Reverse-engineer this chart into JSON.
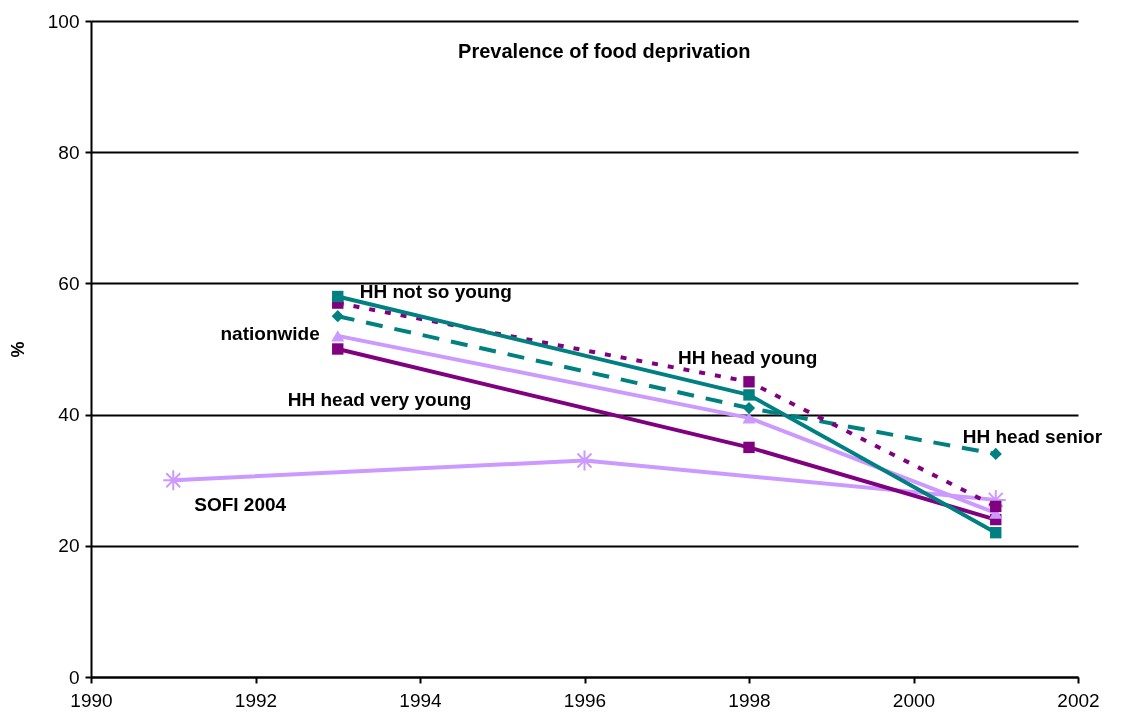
{
  "chart_data": {
    "type": "line",
    "title": "Prevalence of food deprivation",
    "ylabel": "%",
    "xlim": [
      1990,
      2002
    ],
    "xticks": [
      1990,
      1992,
      1994,
      1996,
      1998,
      2000,
      2002
    ],
    "ylim": [
      0,
      100
    ],
    "yticks": [
      0,
      20,
      40,
      60,
      80,
      100
    ],
    "grid": "y",
    "series": [
      {
        "name": "HH not so young",
        "color": "#008080",
        "x": [
          1993,
          1998,
          2001
        ],
        "values": [
          58,
          43,
          22
        ],
        "marker": "square",
        "line_style": "solid"
      },
      {
        "name": "HH head young",
        "color": "#800080",
        "x": [
          1993,
          1998,
          2001
        ],
        "values": [
          57,
          45,
          26
        ],
        "marker": "square",
        "line_style": "dotted"
      },
      {
        "name": "HH head senior",
        "color": "#008080",
        "x": [
          1993,
          1998,
          2001
        ],
        "values": [
          55,
          41,
          34
        ],
        "marker": "diamond",
        "line_style": "dashed"
      },
      {
        "name": "nationwide",
        "color": "#cc99ff",
        "x": [
          1993,
          1998,
          2001
        ],
        "values": [
          52,
          39.5,
          25
        ],
        "marker": "triangle",
        "line_style": "solid"
      },
      {
        "name": "HH head very young",
        "color": "#800080",
        "x": [
          1993,
          1998,
          2001
        ],
        "values": [
          50,
          35,
          24
        ],
        "marker": "square",
        "line_style": "solid"
      },
      {
        "name": "SOFI 2004",
        "color": "#cc99ff",
        "x": [
          1991,
          1996,
          2001
        ],
        "values": [
          30,
          33,
          27
        ],
        "marker": "cross",
        "line_style": "solid"
      }
    ]
  }
}
